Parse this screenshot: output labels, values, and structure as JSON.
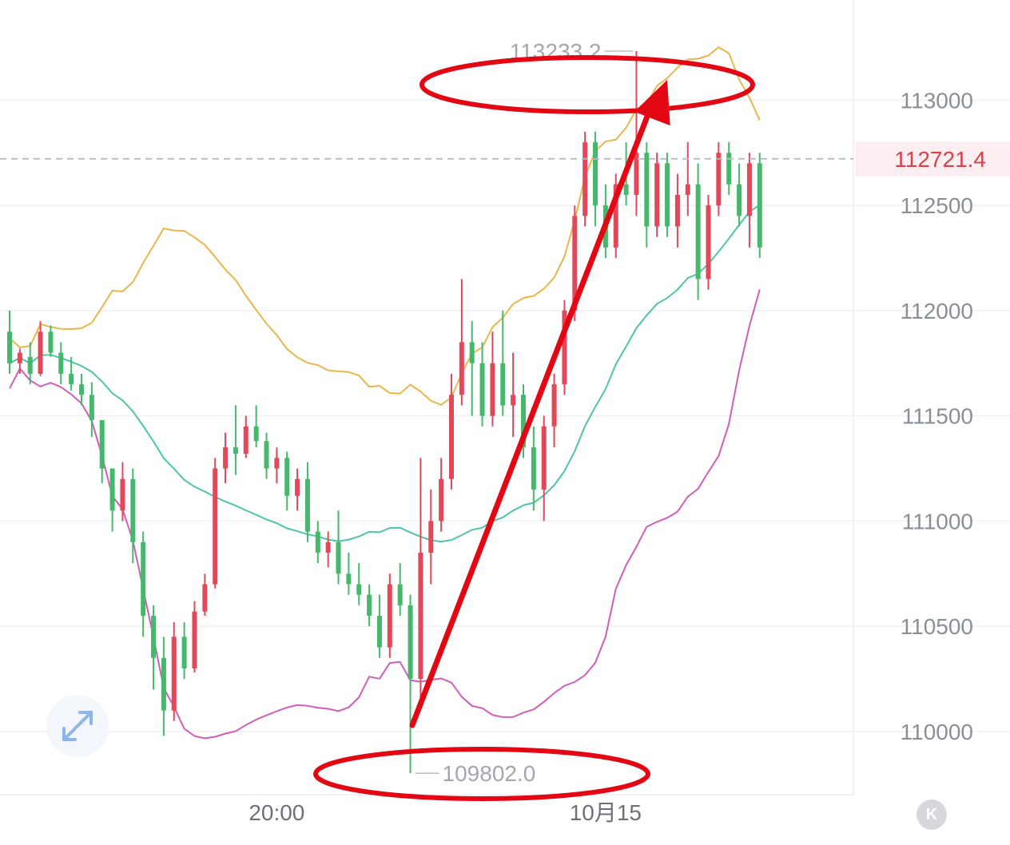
{
  "chart_data": {
    "type": "candlestick",
    "title": "",
    "ylim": [
      109700,
      113400
    ],
    "y_ticks": [
      110000,
      110500,
      111000,
      111500,
      112000,
      112500,
      113000
    ],
    "x_tick_labels": [
      {
        "label": "20:00",
        "index": 26
      },
      {
        "label": "10月15",
        "index": 58
      }
    ],
    "current_price": 112721.4,
    "current_price_label": "112721.4",
    "high_label": "113233.2",
    "low_label": "109802.0",
    "high_index": 61,
    "low_index": 39,
    "colors": {
      "up": "#e2475a",
      "down": "#45b96b",
      "upper": "#e9b64a",
      "middle": "#4ec4a8",
      "lower": "#d25db8",
      "annotation": "#e30613"
    },
    "candles": [
      [
        111900,
        112000,
        111700,
        111750
      ],
      [
        111750,
        111820,
        111700,
        111800
      ],
      [
        111780,
        111850,
        111650,
        111700
      ],
      [
        111700,
        111950,
        111690,
        111900
      ],
      [
        111900,
        111930,
        111780,
        111800
      ],
      [
        111800,
        111850,
        111650,
        111700
      ],
      [
        111700,
        111780,
        111620,
        111650
      ],
      [
        111650,
        111700,
        111550,
        111600
      ],
      [
        111600,
        111660,
        111400,
        111480
      ],
      [
        111480,
        111480,
        111180,
        111250
      ],
      [
        111250,
        111250,
        110950,
        111050
      ],
      [
        111050,
        111280,
        111000,
        111200
      ],
      [
        111200,
        111250,
        110800,
        110900
      ],
      [
        110900,
        110950,
        110450,
        110550
      ],
      [
        110550,
        110600,
        110200,
        110350
      ],
      [
        110350,
        110450,
        109980,
        110100
      ],
      [
        110100,
        110520,
        110050,
        110450
      ],
      [
        110450,
        110520,
        110250,
        110300
      ],
      [
        110300,
        110620,
        110280,
        110570
      ],
      [
        110570,
        110750,
        110550,
        110700
      ],
      [
        110700,
        111300,
        110680,
        111250
      ],
      [
        111250,
        111420,
        111180,
        111350
      ],
      [
        111350,
        111550,
        111220,
        111320
      ],
      [
        111320,
        111500,
        111300,
        111450
      ],
      [
        111450,
        111550,
        111350,
        111380
      ],
      [
        111380,
        111420,
        111200,
        111250
      ],
      [
        111250,
        111350,
        111180,
        111300
      ],
      [
        111300,
        111330,
        111050,
        111120
      ],
      [
        111120,
        111250,
        111050,
        111200
      ],
      [
        111200,
        111280,
        110900,
        110950
      ],
      [
        110950,
        111000,
        110800,
        110850
      ],
      [
        110850,
        110950,
        110780,
        110900
      ],
      [
        110900,
        111050,
        110700,
        110750
      ],
      [
        110750,
        110850,
        110650,
        110700
      ],
      [
        110700,
        110800,
        110600,
        110650
      ],
      [
        110650,
        110700,
        110500,
        110550
      ],
      [
        110550,
        110650,
        110350,
        110400
      ],
      [
        110400,
        110750,
        110350,
        110700
      ],
      [
        110700,
        110800,
        110550,
        110600
      ],
      [
        110600,
        110650,
        109802,
        110250
      ],
      [
        110250,
        111300,
        110150,
        110850
      ],
      [
        110850,
        111150,
        110700,
        111000
      ],
      [
        111000,
        111300,
        110950,
        111200
      ],
      [
        111200,
        111700,
        111150,
        111600
      ],
      [
        111600,
        112150,
        111550,
        111850
      ],
      [
        111850,
        111950,
        111500,
        111750
      ],
      [
        111750,
        111850,
        111450,
        111500
      ],
      [
        111500,
        111900,
        111450,
        111750
      ],
      [
        111750,
        112000,
        111500,
        111550
      ],
      [
        111550,
        111800,
        111400,
        111600
      ],
      [
        111600,
        111650,
        111300,
        111350
      ],
      [
        111350,
        111450,
        111050,
        111150
      ],
      [
        111150,
        111500,
        111000,
        111450
      ],
      [
        111450,
        111700,
        111350,
        111650
      ],
      [
        111650,
        112050,
        111600,
        112000
      ],
      [
        112000,
        112500,
        111950,
        112450
      ],
      [
        112450,
        112850,
        112400,
        112800
      ],
      [
        112800,
        112850,
        112400,
        112500
      ],
      [
        112500,
        112600,
        112250,
        112300
      ],
      [
        112300,
        112650,
        112250,
        112600
      ],
      [
        112600,
        112800,
        112500,
        112550
      ],
      [
        112550,
        113233.2,
        112450,
        112750
      ],
      [
        112750,
        112800,
        112300,
        112400
      ],
      [
        112400,
        112750,
        112350,
        112700
      ],
      [
        112700,
        112750,
        112350,
        112400
      ],
      [
        112400,
        112650,
        112300,
        112550
      ],
      [
        112550,
        112800,
        112450,
        112600
      ],
      [
        112600,
        112700,
        112050,
        112150
      ],
      [
        112150,
        112550,
        112100,
        112500
      ],
      [
        112500,
        112800,
        112450,
        112750
      ],
      [
        112750,
        112800,
        112550,
        112600
      ],
      [
        112600,
        112700,
        112400,
        112450
      ],
      [
        112450,
        112750,
        112300,
        112700
      ],
      [
        112700,
        112750,
        112250,
        112300
      ]
    ]
  },
  "ui": {
    "expand_icon": "expand-arrows-icon",
    "k_badge": "K"
  }
}
